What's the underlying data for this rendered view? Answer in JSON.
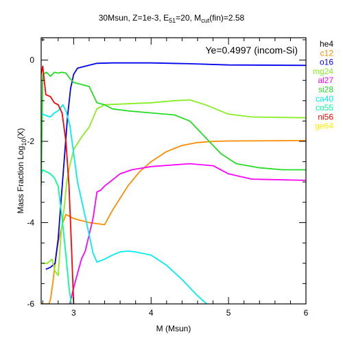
{
  "chart_data": {
    "type": "line",
    "title_main": "30Msun, Z=1e-3, E",
    "title_e_sub": "51",
    "title_mid": "=20, M",
    "title_m_sub": "cut",
    "title_end": "(fin)=2.58",
    "annotation": "Ye=0.4997 (incom-Si)",
    "xlabel": "M (Msun)",
    "ylabel_main": "Mass Fraction Log",
    "ylabel_sub": "10",
    "ylabel_end": "(X)",
    "xlim": [
      2.58,
      6.0
    ],
    "ylim": [
      -6,
      0.55
    ],
    "xticks": [
      3,
      4,
      5,
      6
    ],
    "yticks": [
      0,
      -2,
      -4,
      -6
    ],
    "grid": false,
    "legend_position": "right",
    "series": [
      {
        "name": "he4",
        "color": "#000000",
        "points": []
      },
      {
        "name": "c12",
        "color": "#ff8c00",
        "points": [
          [
            2.58,
            -6
          ],
          [
            2.64,
            -6
          ],
          [
            2.68,
            -6
          ],
          [
            2.7,
            -5.9
          ],
          [
            2.73,
            -5.5
          ],
          [
            2.76,
            -5.0
          ],
          [
            2.79,
            -4.6
          ],
          [
            2.82,
            -4.3
          ],
          [
            2.86,
            -4.0
          ],
          [
            2.9,
            -3.8
          ],
          [
            2.95,
            -3.85
          ],
          [
            3.0,
            -3.9
          ],
          [
            3.2,
            -4.0
          ],
          [
            3.4,
            -4.05
          ],
          [
            3.5,
            -3.7
          ],
          [
            3.6,
            -3.4
          ],
          [
            3.7,
            -3.1
          ],
          [
            3.85,
            -2.75
          ],
          [
            4.0,
            -2.5
          ],
          [
            4.2,
            -2.25
          ],
          [
            4.4,
            -2.1
          ],
          [
            4.6,
            -2.03
          ],
          [
            4.8,
            -2.0
          ],
          [
            5.0,
            -1.99
          ],
          [
            6.0,
            -1.98
          ]
        ]
      },
      {
        "name": "o16",
        "color": "#0000ee",
        "points": [
          [
            2.64,
            -5.15
          ],
          [
            2.7,
            -5.1
          ],
          [
            2.76,
            -5.0
          ],
          [
            2.8,
            -4.4
          ],
          [
            2.84,
            -3.4
          ],
          [
            2.88,
            -2.4
          ],
          [
            2.92,
            -1.4
          ],
          [
            2.96,
            -0.7
          ],
          [
            3.0,
            -0.35
          ],
          [
            3.05,
            -0.2
          ],
          [
            3.15,
            -0.15
          ],
          [
            3.3,
            -0.08
          ],
          [
            3.5,
            -0.07
          ],
          [
            4.0,
            -0.07
          ],
          [
            4.5,
            -0.09
          ],
          [
            5.0,
            -0.12
          ],
          [
            6.0,
            -0.13
          ]
        ]
      },
      {
        "name": "mg24",
        "color": "#88ee22",
        "points": [
          [
            2.6,
            -5.0
          ],
          [
            2.66,
            -5.0
          ],
          [
            2.72,
            -4.9
          ],
          [
            2.76,
            -5.2
          ],
          [
            2.8,
            -5.3
          ],
          [
            2.84,
            -4.2
          ],
          [
            2.88,
            -3.6
          ],
          [
            2.91,
            -3.0
          ],
          [
            2.95,
            -2.6
          ],
          [
            3.0,
            -2.2
          ],
          [
            3.1,
            -1.9
          ],
          [
            3.2,
            -1.65
          ],
          [
            3.3,
            -1.2
          ],
          [
            3.4,
            -1.1
          ],
          [
            4.0,
            -1.05
          ],
          [
            4.3,
            -1.0
          ],
          [
            4.5,
            -0.98
          ],
          [
            4.7,
            -1.1
          ],
          [
            5.0,
            -1.33
          ],
          [
            5.3,
            -1.4
          ],
          [
            6.0,
            -1.42
          ]
        ]
      },
      {
        "name": "al27",
        "color": "#ff00ff",
        "points": [
          [
            2.95,
            -6
          ],
          [
            3.0,
            -5.6
          ],
          [
            3.1,
            -4.9
          ],
          [
            3.15,
            -4.7
          ],
          [
            3.25,
            -3.9
          ],
          [
            3.3,
            -3.25
          ],
          [
            3.35,
            -3.2
          ],
          [
            3.4,
            -3.1
          ],
          [
            3.5,
            -2.95
          ],
          [
            3.6,
            -2.8
          ],
          [
            3.75,
            -2.7
          ],
          [
            4.0,
            -2.62
          ],
          [
            4.5,
            -2.55
          ],
          [
            4.8,
            -2.6
          ],
          [
            5.0,
            -2.8
          ],
          [
            5.3,
            -2.93
          ],
          [
            6.0,
            -2.96
          ]
        ]
      },
      {
        "name": "si28",
        "color": "#22dd22",
        "points": [
          [
            2.58,
            -3.1
          ],
          [
            2.6,
            -0.35
          ],
          [
            2.65,
            -0.3
          ],
          [
            2.7,
            -0.4
          ],
          [
            2.75,
            -0.3
          ],
          [
            2.8,
            -0.32
          ],
          [
            2.85,
            -0.3
          ],
          [
            2.9,
            -0.32
          ],
          [
            2.95,
            -0.45
          ],
          [
            3.0,
            -0.55
          ],
          [
            3.1,
            -0.6
          ],
          [
            3.2,
            -0.65
          ],
          [
            3.3,
            -1.05
          ],
          [
            3.4,
            -1.1
          ],
          [
            3.5,
            -1.2
          ],
          [
            3.7,
            -1.25
          ],
          [
            4.0,
            -1.3
          ],
          [
            4.3,
            -1.35
          ],
          [
            4.5,
            -1.5
          ],
          [
            4.7,
            -1.9
          ],
          [
            4.9,
            -2.3
          ],
          [
            5.1,
            -2.55
          ],
          [
            5.4,
            -2.65
          ],
          [
            5.7,
            -2.7
          ],
          [
            6.0,
            -2.7
          ]
        ]
      },
      {
        "name": "ca40",
        "color": "#00eeee",
        "points": [
          [
            2.58,
            -1.3
          ],
          [
            2.62,
            -1.35
          ],
          [
            2.7,
            -1.4
          ],
          [
            2.75,
            -1.3
          ],
          [
            2.8,
            -1.25
          ],
          [
            2.86,
            -1.1
          ],
          [
            2.9,
            -1.25
          ],
          [
            2.95,
            -1.6
          ],
          [
            3.0,
            -2.3
          ],
          [
            3.05,
            -3.0
          ],
          [
            3.12,
            -3.6
          ],
          [
            3.2,
            -4.3
          ],
          [
            3.25,
            -4.75
          ],
          [
            3.3,
            -4.97
          ],
          [
            3.4,
            -4.9
          ],
          [
            3.5,
            -4.8
          ],
          [
            3.6,
            -4.72
          ],
          [
            3.7,
            -4.7
          ],
          [
            3.8,
            -4.72
          ],
          [
            4.0,
            -4.8
          ],
          [
            4.2,
            -5.05
          ],
          [
            4.4,
            -5.4
          ],
          [
            4.6,
            -5.8
          ],
          [
            4.72,
            -6.0
          ]
        ]
      },
      {
        "name": "co55",
        "color": "#00ff99",
        "points": [
          [
            2.58,
            -2.8
          ],
          [
            2.6,
            -2.7
          ],
          [
            2.65,
            -2.75
          ],
          [
            2.7,
            -2.8
          ],
          [
            2.75,
            -2.9
          ],
          [
            2.8,
            -3.1
          ],
          [
            2.85,
            -3.9
          ],
          [
            2.9,
            -4.8
          ],
          [
            2.94,
            -5.6
          ],
          [
            2.97,
            -6.0
          ]
        ]
      },
      {
        "name": "ni56",
        "color": "#ff0000",
        "points": [
          [
            2.58,
            -0.35
          ],
          [
            2.6,
            -0.15
          ],
          [
            2.62,
            -0.5
          ],
          [
            2.64,
            -0.85
          ],
          [
            2.7,
            -0.9
          ],
          [
            2.75,
            -1.05
          ],
          [
            2.8,
            -1.1
          ],
          [
            2.85,
            -1.3
          ],
          [
            2.9,
            -2.0
          ],
          [
            2.94,
            -3.1
          ],
          [
            2.97,
            -4.5
          ],
          [
            3.0,
            -6.0
          ]
        ]
      },
      {
        "name": "ge64",
        "color": "#ffee00",
        "points": []
      }
    ]
  }
}
